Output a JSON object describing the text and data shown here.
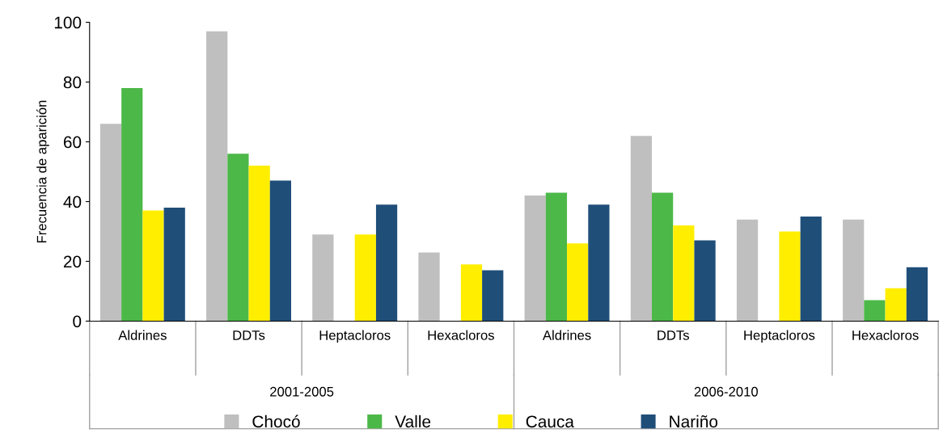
{
  "chart_data": {
    "type": "bar",
    "ylabel": "Frecuencia de aparición",
    "categories": [
      "Aldrines",
      "DDTs",
      "Heptacloros",
      "Hexacloros",
      "Aldrines",
      "DDTs",
      "Heptacloros",
      "Hexacloros"
    ],
    "series": [
      {
        "name": "Chocó",
        "color": "#bfbfbf",
        "values": [
          66,
          97,
          29,
          23,
          42,
          62,
          34,
          34
        ]
      },
      {
        "name": "Valle",
        "color": "#4cb848",
        "values": [
          78,
          56,
          null,
          null,
          43,
          43,
          null,
          7
        ]
      },
      {
        "name": "Cauca",
        "color": "#ffee00",
        "values": [
          37,
          52,
          29,
          19,
          26,
          32,
          30,
          11
        ]
      },
      {
        "name": "Nariño",
        "color": "#1f4e79",
        "values": [
          38,
          47,
          39,
          17,
          39,
          27,
          35,
          18
        ]
      }
    ],
    "annotations": [
      "2001-2005",
      "2006-2010"
    ],
    "ylim": [
      0,
      100
    ],
    "yticks": [
      0,
      20,
      40,
      60,
      80,
      100
    ],
    "grid": false,
    "legend": "bottom"
  }
}
